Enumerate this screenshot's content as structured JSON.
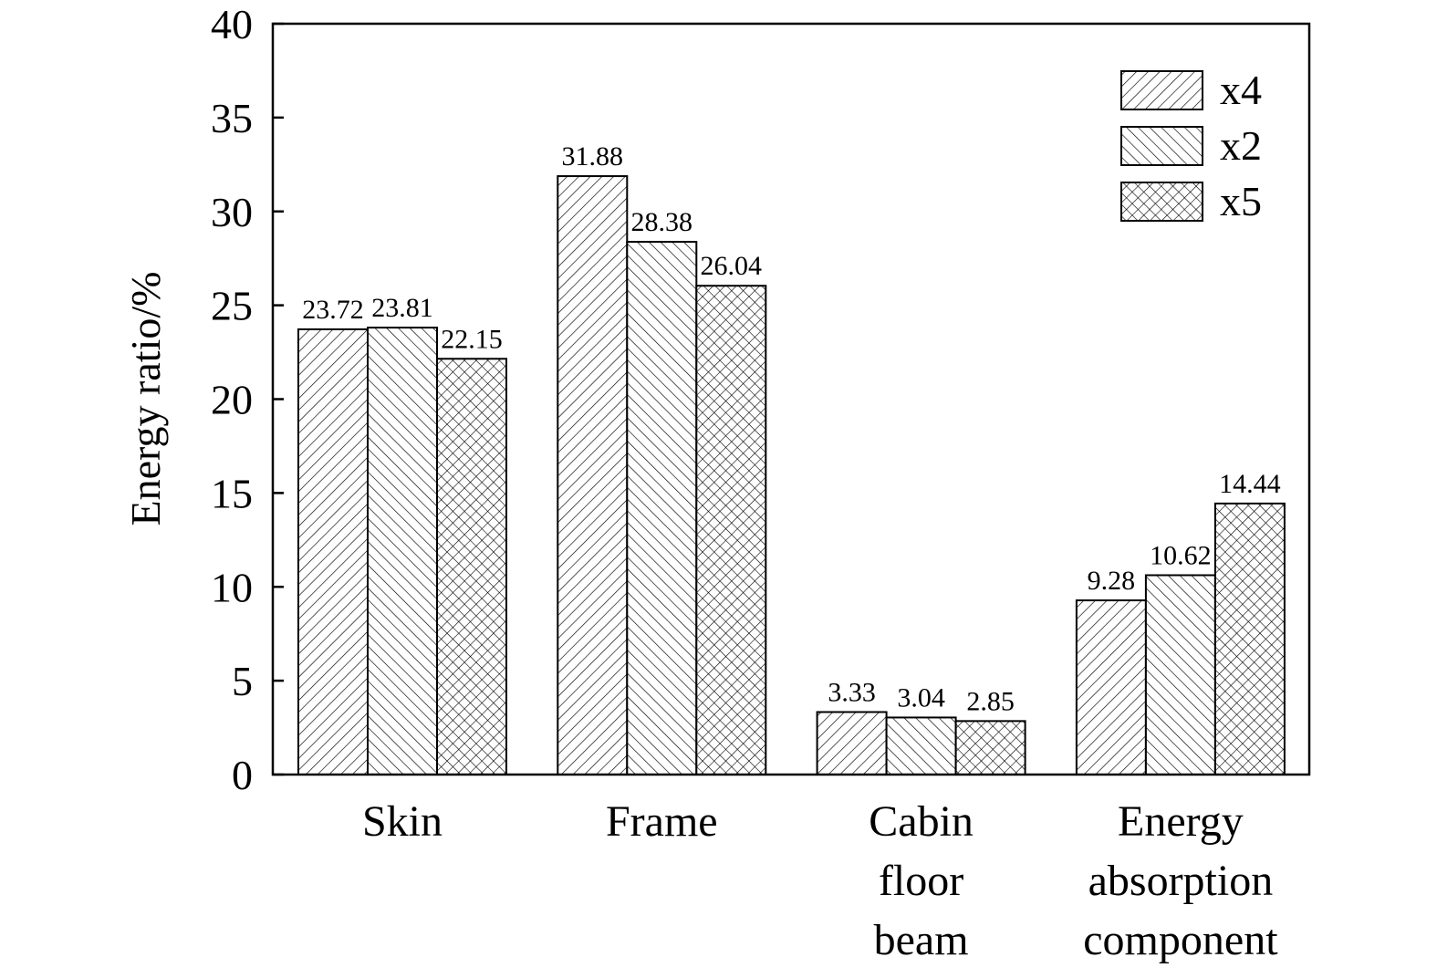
{
  "chart_data": {
    "type": "bar",
    "categories": [
      [
        "Skin"
      ],
      [
        "Frame"
      ],
      [
        "Cabin",
        "floor",
        "beam"
      ],
      [
        "Energy",
        "absorption",
        "component"
      ]
    ],
    "series": [
      {
        "name": "x4",
        "pattern": "diag-right",
        "values": [
          23.72,
          31.88,
          3.33,
          9.28
        ]
      },
      {
        "name": "x2",
        "pattern": "diag-left",
        "values": [
          23.81,
          28.38,
          3.04,
          10.62
        ]
      },
      {
        "name": "x5",
        "pattern": "crosshatch",
        "values": [
          22.15,
          26.04,
          2.85,
          14.44
        ]
      }
    ],
    "ylabel": "Energy ratio/%",
    "xlabel": "",
    "ylim": [
      0,
      40
    ],
    "yticks": [
      0,
      5,
      10,
      15,
      20,
      25,
      30,
      35,
      40
    ],
    "legend_position": "top-right",
    "grid": false,
    "colors": {
      "stroke": "#000000",
      "fill": "#ffffff"
    }
  }
}
